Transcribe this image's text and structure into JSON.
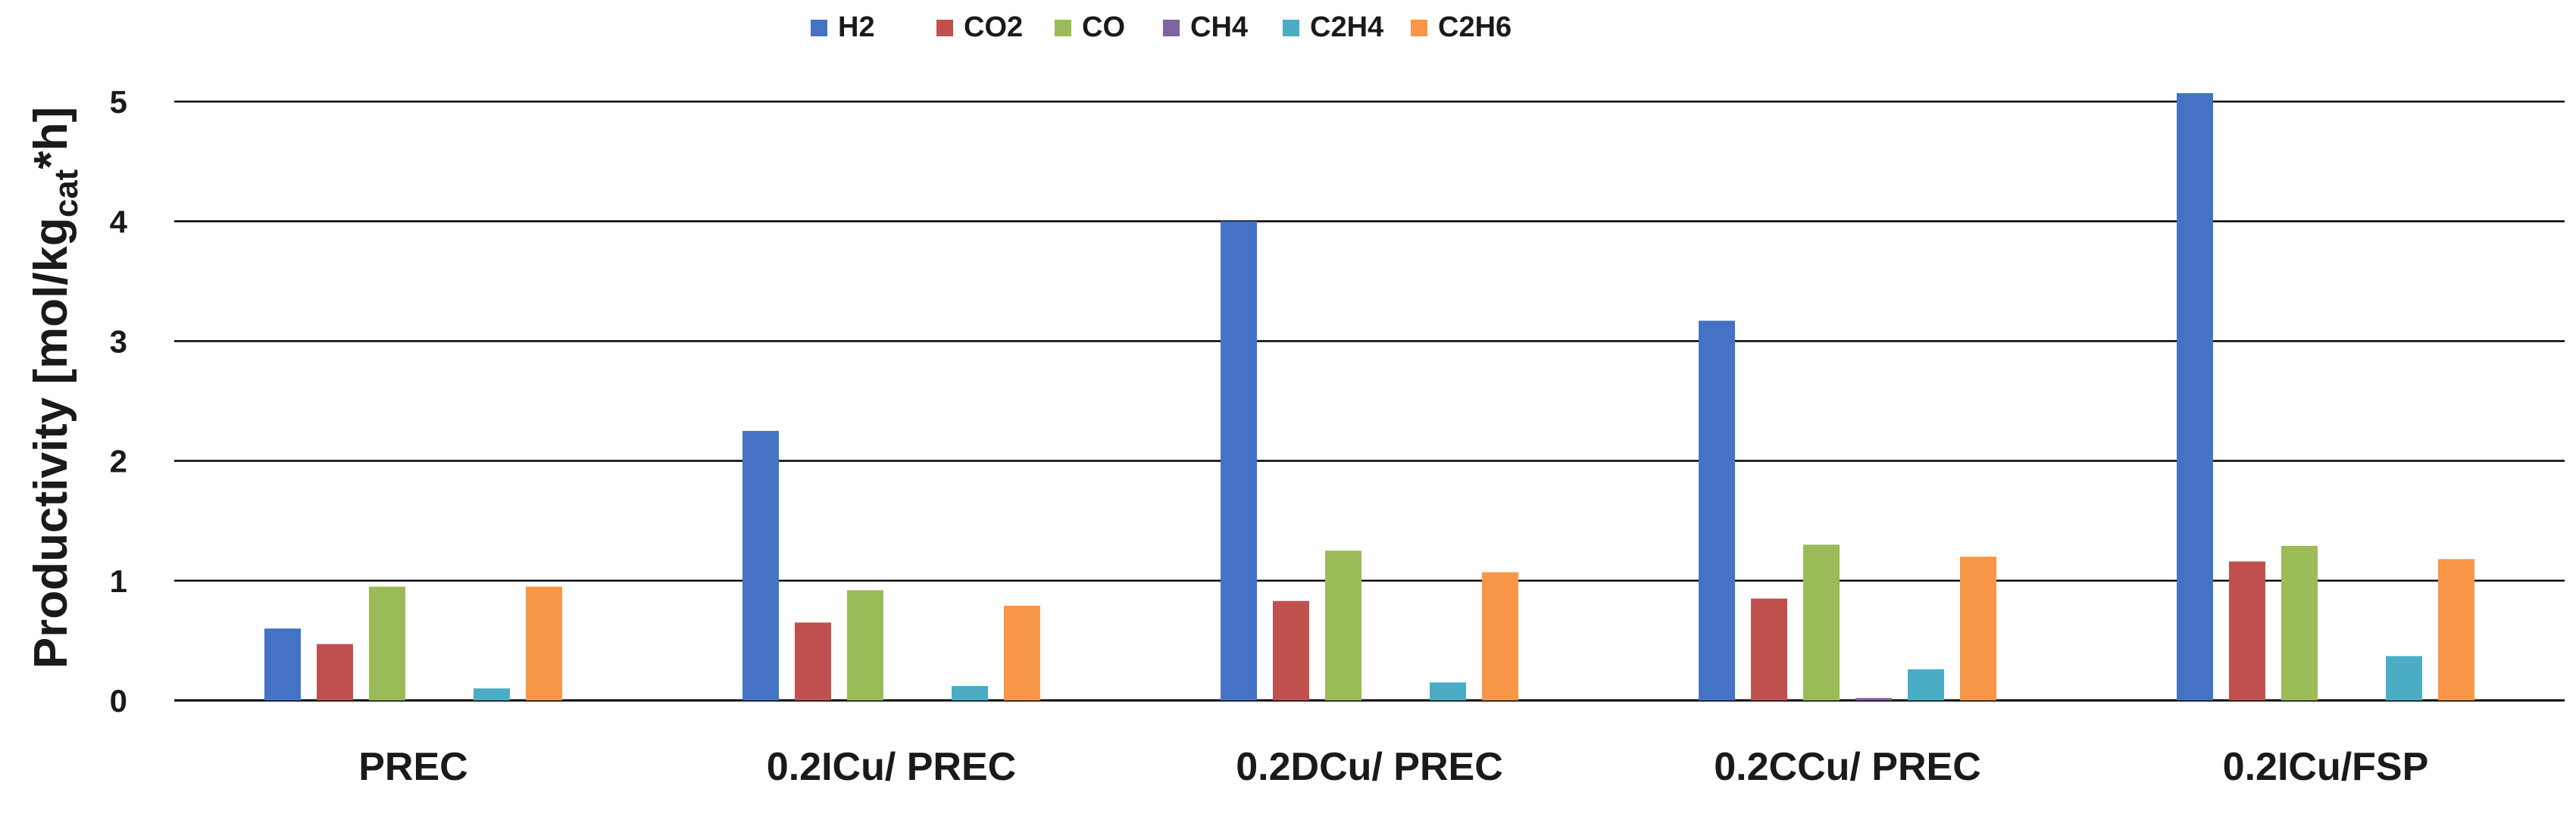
{
  "chart_data": {
    "type": "bar",
    "title": "",
    "xlabel": "",
    "ylabel": "Productivity [mol/kg",
    "ylabel_subscript": "cat",
    "ylabel_suffix": "*h]",
    "ylim": [
      0,
      5.5
    ],
    "yticks": [
      "0",
      "1",
      "2",
      "3",
      "4",
      "5"
    ],
    "grid": "horizontal",
    "legend_position": "top-center",
    "categories": [
      "PREC",
      "0.2ICu/ PREC",
      "0.2DCu/ PREC",
      "0.2CCu/ PREC",
      "0.2ICu/FSP"
    ],
    "series": [
      {
        "name": "H2",
        "color": "#4472C4",
        "values": [
          0.6,
          2.25,
          4.0,
          3.17,
          5.07
        ]
      },
      {
        "name": "CO2",
        "color": "#C0504D",
        "values": [
          0.47,
          0.65,
          0.83,
          0.85,
          1.16
        ]
      },
      {
        "name": "CO",
        "color": "#9BBB59",
        "values": [
          0.95,
          0.92,
          1.25,
          1.3,
          1.29
        ]
      },
      {
        "name": "CH4",
        "color": "#8064A2",
        "values": [
          0.0,
          0.0,
          0.0,
          0.02,
          0.0
        ]
      },
      {
        "name": "C2H4",
        "color": "#4BACC6",
        "values": [
          0.1,
          0.12,
          0.15,
          0.26,
          0.37
        ]
      },
      {
        "name": "C2H6",
        "color": "#F79646",
        "values": [
          0.95,
          0.79,
          1.07,
          1.2,
          1.18
        ]
      }
    ]
  }
}
